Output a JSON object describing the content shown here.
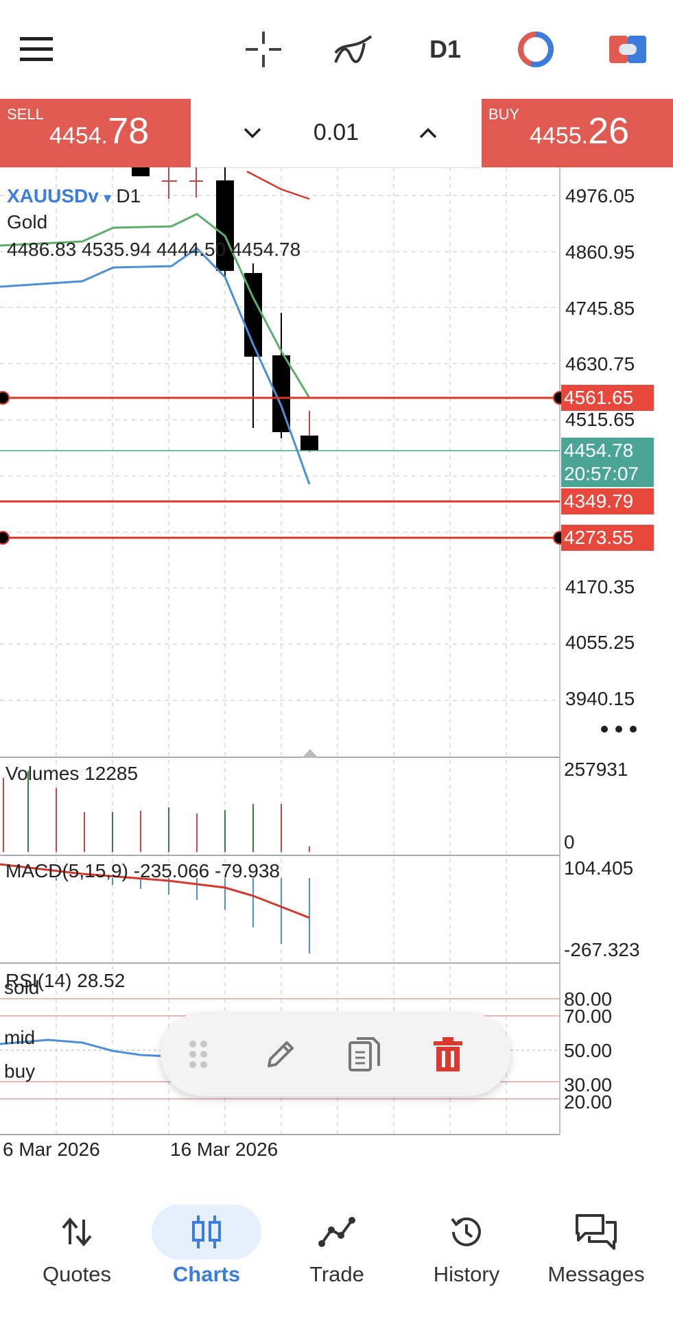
{
  "toolbar": {
    "timeframe": "D1"
  },
  "trade_panel": {
    "sell": {
      "label": "SELL",
      "price_main": "4454.",
      "price_big": "78"
    },
    "buy": {
      "label": "BUY",
      "price_main": "4455.",
      "price_big": "26"
    },
    "lot": "0.01"
  },
  "chart": {
    "symbol": "XAUUSDv",
    "dropdown_glyph": "▾",
    "timeframe": "D1",
    "description": "Gold",
    "ohlc": "4486.83 4535.94 4444.50 4454.78",
    "price_axis": [
      "4976.05",
      "4860.95",
      "4745.85",
      "4630.75",
      "4515.65",
      "4170.35",
      "4055.25",
      "3940.15"
    ],
    "hline_tags": [
      "4561.65",
      "4349.79",
      "4273.55"
    ],
    "current_price": "4454.78",
    "countdown": "20:57:07",
    "volumes_label": "Volumes 12285",
    "volumes_max": "257931",
    "volumes_min": "0",
    "macd_label": "MACD(5,15,9) -235.066 -79.938",
    "macd_max": "104.405",
    "macd_min": "-267.323",
    "rsi_label": "RSI(14) 28.52",
    "rsi_levels": [
      "80.00",
      "70.00",
      "50.00",
      "30.00",
      "20.00"
    ],
    "rsi_names": {
      "sold": "sold",
      "mid": "mid",
      "buy": "buy"
    },
    "date_labels": [
      "6 Mar 2026",
      "16 Mar 2026"
    ],
    "colors": {
      "bear": "#000000",
      "red_line": "#d9362b",
      "green_ma": "#5cae6a",
      "blue_ma": "#4a90d9",
      "tag_red": "#e8473b",
      "tag_teal": "#4aa596"
    }
  },
  "nav": {
    "items": [
      {
        "label": "Quotes",
        "icon": "quotes-arrows-icon"
      },
      {
        "label": "Charts",
        "icon": "candles-icon"
      },
      {
        "label": "Trade",
        "icon": "trade-line-icon"
      },
      {
        "label": "History",
        "icon": "history-clock-icon"
      },
      {
        "label": "Messages",
        "icon": "messages-bubbles-icon"
      }
    ]
  }
}
